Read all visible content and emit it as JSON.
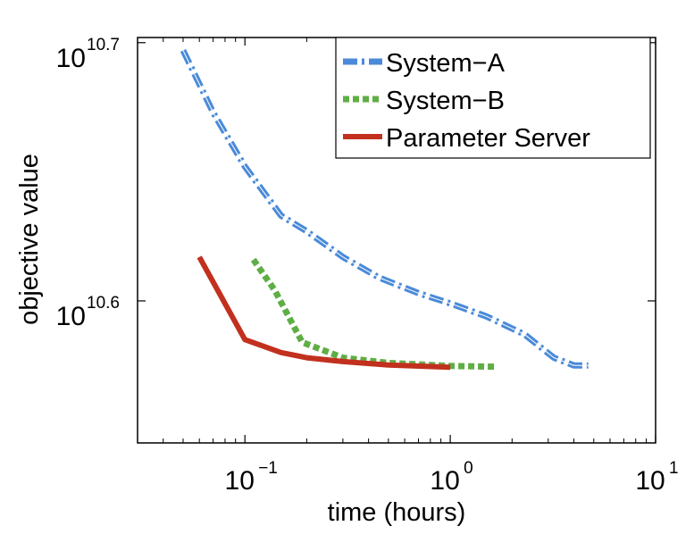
{
  "chart_data": {
    "type": "line",
    "title": "",
    "xlabel": "time (hours)",
    "ylabel": "objective value",
    "xscale": "log",
    "yscale": "log",
    "xlim": [
      0.03,
      10
    ],
    "ylim_exponent": [
      10.545,
      10.702
    ],
    "grid": false,
    "legend_position": "top-right",
    "x_ticks": [
      {
        "base": "10",
        "exp": "−1",
        "value": 0.1
      },
      {
        "base": "10",
        "exp": "0",
        "value": 1
      },
      {
        "base": "10",
        "exp": "1",
        "value": 10
      }
    ],
    "y_ticks": [
      {
        "base": "10",
        "exp": "10.6",
        "value_exp": 10.6
      },
      {
        "base": "10",
        "exp": "10.7",
        "value_exp": 10.7
      }
    ],
    "series": [
      {
        "name": "System−A",
        "color": "#4a8ad8",
        "style": "dash-dot",
        "points": [
          [
            0.05,
            10.697
          ],
          [
            0.07,
            10.673
          ],
          [
            0.1,
            10.652
          ],
          [
            0.15,
            10.633
          ],
          [
            0.2,
            10.627
          ],
          [
            0.3,
            10.617
          ],
          [
            0.45,
            10.609
          ],
          [
            0.7,
            10.603
          ],
          [
            1.0,
            10.599
          ],
          [
            1.5,
            10.594
          ],
          [
            2.3,
            10.587
          ],
          [
            3.2,
            10.578
          ],
          [
            4.0,
            10.575
          ],
          [
            4.7,
            10.575
          ]
        ]
      },
      {
        "name": "System−B",
        "color": "#5fae45",
        "style": "dotted",
        "points": [
          [
            0.11,
            10.616
          ],
          [
            0.14,
            10.604
          ],
          [
            0.19,
            10.584
          ],
          [
            0.3,
            10.578
          ],
          [
            0.5,
            10.576
          ],
          [
            1.0,
            10.5748
          ],
          [
            1.7,
            10.5745
          ]
        ]
      },
      {
        "name": "Parameter Server",
        "color": "#c2301e",
        "style": "solid",
        "points": [
          [
            0.06,
            10.617
          ],
          [
            0.1,
            10.585
          ],
          [
            0.15,
            10.58
          ],
          [
            0.2,
            10.578
          ],
          [
            0.3,
            10.5765
          ],
          [
            0.5,
            10.5752
          ],
          [
            1.0,
            10.5743
          ]
        ]
      }
    ]
  }
}
